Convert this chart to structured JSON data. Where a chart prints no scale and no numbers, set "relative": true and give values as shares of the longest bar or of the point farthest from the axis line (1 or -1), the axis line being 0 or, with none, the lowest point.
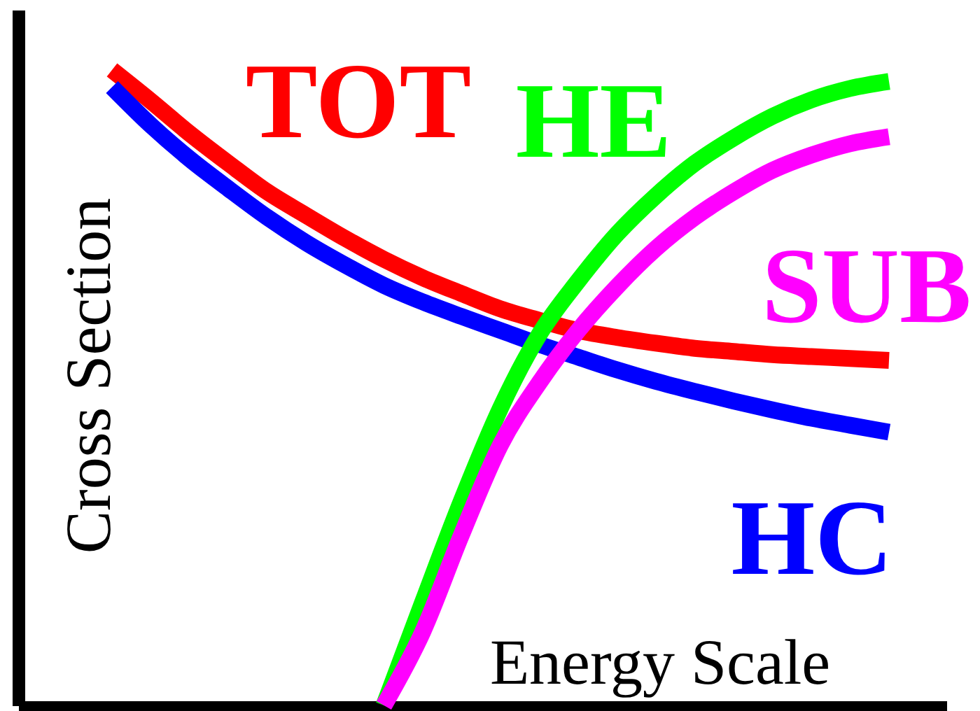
{
  "chart_data": {
    "type": "line",
    "relative": true,
    "xlabel": "Energy Scale",
    "ylabel": "Cross Section",
    "categories": [
      null,
      null,
      null,
      null,
      null,
      null,
      null,
      null,
      null,
      null,
      null,
      null,
      null,
      null,
      null,
      null,
      null,
      null,
      null,
      null,
      null
    ],
    "series": [
      {
        "name": "TOT",
        "color": "#ff0000",
        "values": [
          1.0,
          0.951,
          0.9,
          0.853,
          0.808,
          0.771,
          0.735,
          0.702,
          0.673,
          0.648,
          0.624,
          0.606,
          0.59,
          0.579,
          0.57,
          0.562,
          0.557,
          0.552,
          0.549,
          0.546,
          0.543
        ]
      },
      {
        "name": "HC",
        "color": "#0000ff",
        "values": [
          0.973,
          0.913,
          0.86,
          0.813,
          0.768,
          0.728,
          0.693,
          0.661,
          0.635,
          0.612,
          0.59,
          0.568,
          0.548,
          0.528,
          0.51,
          0.494,
          0.479,
          0.465,
          0.452,
          0.441,
          0.43
        ]
      },
      {
        "name": "HE",
        "color": "#00ff00",
        "values": [
          null,
          null,
          null,
          null,
          null,
          null,
          null,
          0,
          0.163,
          0.323,
          0.468,
          0.584,
          0.668,
          0.742,
          0.802,
          0.853,
          0.893,
          0.927,
          0.953,
          0.971,
          0.982
        ]
      },
      {
        "name": "SUB",
        "color": "#ff00ff",
        "values": [
          null,
          null,
          null,
          null,
          null,
          null,
          null,
          0,
          0.116,
          0.269,
          0.41,
          0.508,
          0.59,
          0.659,
          0.719,
          0.768,
          0.808,
          0.842,
          0.866,
          0.884,
          0.895
        ]
      }
    ]
  }
}
